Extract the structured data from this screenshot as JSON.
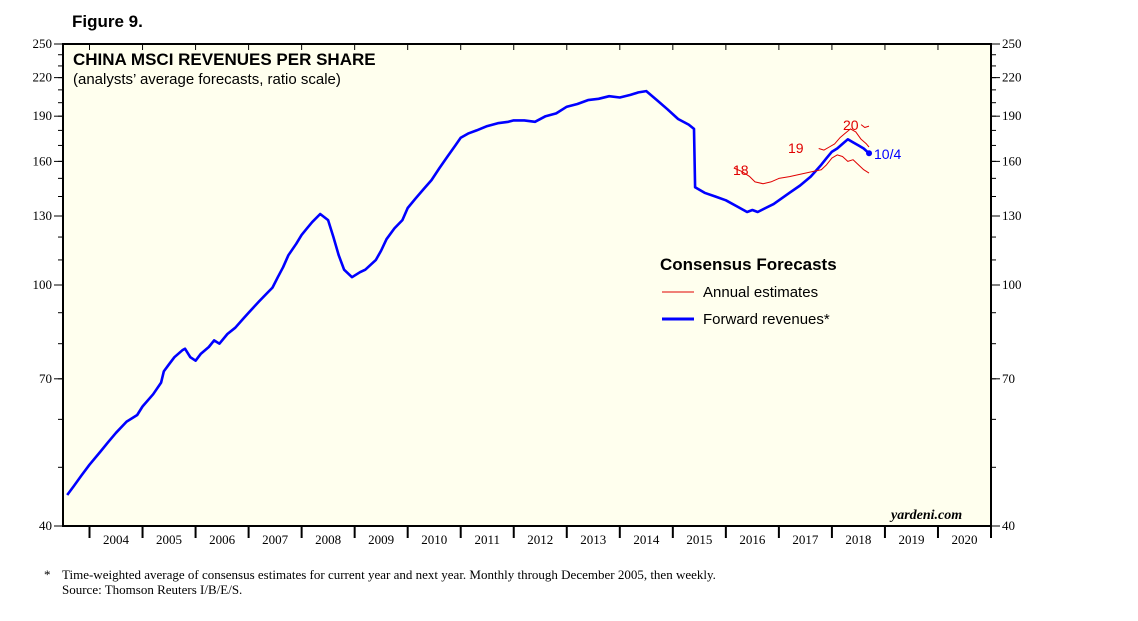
{
  "figure_label": "Figure 9.",
  "footnote": {
    "marker": "*",
    "line1": "Time-weighted average of consensus estimates for current year and next year. Monthly through December 2005, then weekly.",
    "line2": "Source: Thomson Reuters I/B/E/S."
  },
  "colors": {
    "forward": "#0000ff",
    "annual": "#e00000",
    "plot_bg": "#ffffee"
  },
  "chart_data": {
    "type": "line",
    "title": "CHINA MSCI REVENUES PER SHARE",
    "subtitle": "(analysts’ average forecasts, ratio scale)",
    "y_scale": "log",
    "ylim": [
      40,
      250
    ],
    "y_ticks": [
      40,
      70,
      100,
      130,
      160,
      190,
      220,
      250
    ],
    "xlim": [
      2003.5,
      2021.0
    ],
    "x_tick_labels": [
      "2004",
      "2005",
      "2006",
      "2007",
      "2008",
      "2009",
      "2010",
      "2011",
      "2012",
      "2013",
      "2014",
      "2015",
      "2016",
      "2017",
      "2018",
      "2019",
      "2020"
    ],
    "legend": {
      "title": "Consensus Forecasts",
      "annual_label": "Annual estimates",
      "forward_label": "Forward revenues*"
    },
    "annotations": {
      "a18": "18",
      "a19": "19",
      "a20": "20",
      "last_date": "10/4"
    },
    "watermark": "yardeni.com",
    "series": [
      {
        "name": "Forward revenues*",
        "x": [
          2003.58,
          2003.7,
          2003.85,
          2004.0,
          2004.2,
          2004.35,
          2004.5,
          2004.7,
          2004.9,
          2005.0,
          2005.2,
          2005.35,
          2005.4,
          2005.5,
          2005.6,
          2005.75,
          2005.8,
          2005.9,
          2006.0,
          2006.1,
          2006.25,
          2006.35,
          2006.45,
          2006.6,
          2006.75,
          2006.9,
          2007.0,
          2007.2,
          2007.35,
          2007.45,
          2007.55,
          2007.65,
          2007.75,
          2007.9,
          2008.0,
          2008.1,
          2008.2,
          2008.35,
          2008.5,
          2008.6,
          2008.7,
          2008.8,
          2008.95,
          2009.1,
          2009.2,
          2009.3,
          2009.4,
          2009.5,
          2009.6,
          2009.75,
          2009.9,
          2010.0,
          2010.15,
          2010.3,
          2010.45,
          2010.6,
          2010.75,
          2010.9,
          2011.0,
          2011.15,
          2011.3,
          2011.5,
          2011.7,
          2011.9,
          2012.0,
          2012.2,
          2012.4,
          2012.6,
          2012.8,
          2013.0,
          2013.2,
          2013.4,
          2013.6,
          2013.8,
          2014.0,
          2014.2,
          2014.35,
          2014.5,
          2014.7,
          2014.9,
          2015.1,
          2015.3,
          2015.4,
          2015.42,
          2015.6,
          2015.8,
          2016.0,
          2016.2,
          2016.4,
          2016.5,
          2016.6,
          2016.75,
          2016.9,
          2017.0,
          2017.2,
          2017.4,
          2017.6,
          2017.8,
          2017.9,
          2018.0,
          2018.1,
          2018.2,
          2018.3,
          2018.4,
          2018.5,
          2018.6,
          2018.7
        ],
        "y": [
          45,
          46.5,
          48.5,
          50.5,
          53,
          55,
          57,
          59.5,
          61,
          63,
          66,
          69,
          72,
          74,
          76,
          78,
          78.5,
          76,
          75,
          77,
          79,
          81,
          80,
          83,
          85,
          88,
          90,
          94,
          97,
          99,
          103,
          107,
          112,
          117,
          121,
          124,
          127,
          131,
          128,
          120,
          112,
          106,
          103,
          105,
          106,
          108,
          110,
          114,
          119,
          124,
          128,
          134,
          139,
          144,
          149,
          156,
          163,
          170,
          175,
          178,
          180,
          183,
          185,
          186,
          187,
          187,
          186,
          190,
          192,
          197,
          199,
          202,
          203,
          205,
          204,
          206,
          208,
          209,
          202,
          195,
          188,
          184,
          181,
          145,
          142,
          140,
          138,
          135,
          132,
          133,
          132,
          134,
          136,
          138,
          142,
          146,
          151,
          158,
          162,
          166,
          168,
          171,
          174,
          172,
          170,
          168,
          165
        ]
      },
      {
        "name": "18",
        "x": [
          2016.15,
          2016.3,
          2016.45,
          2016.55,
          2016.7,
          2016.85,
          2017.0,
          2017.2,
          2017.35,
          2017.5,
          2017.65,
          2017.8,
          2017.9,
          2018.0,
          2018.1,
          2018.2,
          2018.3,
          2018.4,
          2018.5,
          2018.6,
          2018.7
        ],
        "y": [
          156,
          154,
          151,
          148,
          147,
          148,
          150,
          151,
          152,
          153,
          154,
          155,
          158,
          162,
          164,
          163,
          160,
          161,
          158,
          155,
          153
        ]
      },
      {
        "name": "19",
        "x": [
          2017.75,
          2017.85,
          2017.95,
          2018.05,
          2018.15,
          2018.25,
          2018.35,
          2018.45,
          2018.55,
          2018.65,
          2018.7
        ],
        "y": [
          168,
          167,
          169,
          171,
          175,
          178,
          181,
          179,
          174,
          171,
          169
        ]
      },
      {
        "name": "20",
        "x": [
          2018.55,
          2018.62,
          2018.7
        ],
        "y": [
          184,
          182,
          183
        ]
      }
    ]
  }
}
